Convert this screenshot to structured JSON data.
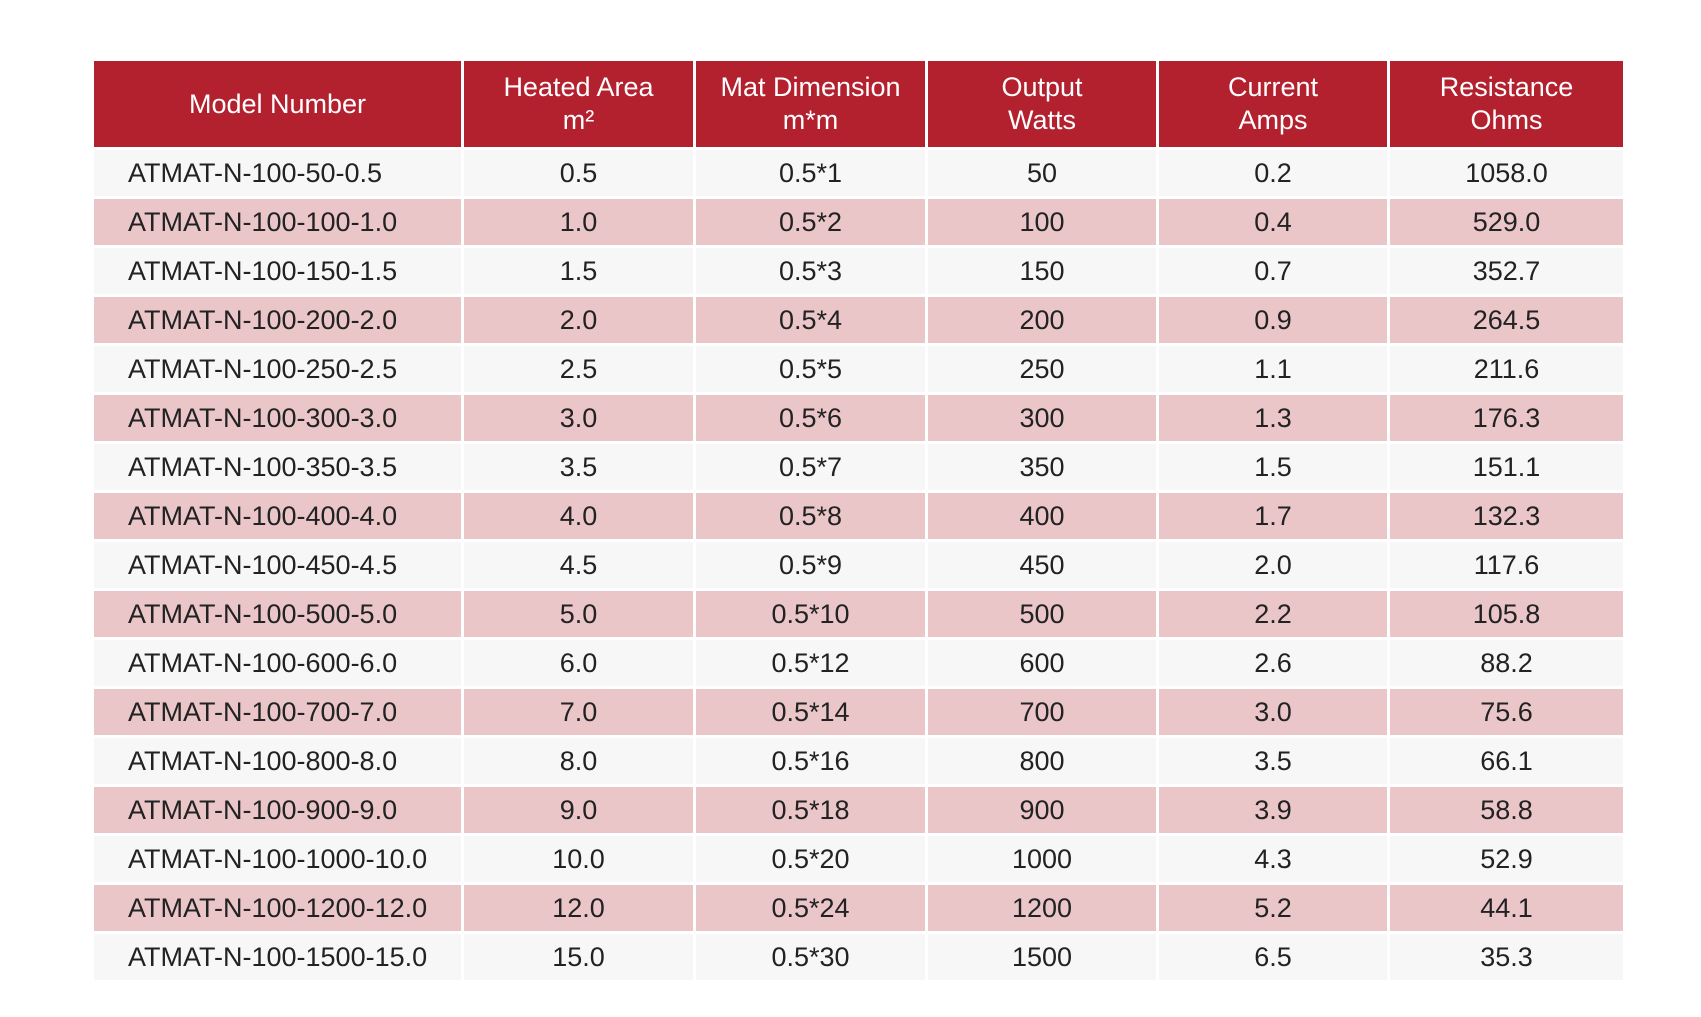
{
  "table": {
    "headers": [
      {
        "line1": "Model Number",
        "line2": ""
      },
      {
        "line1": "Heated Area",
        "line2": "m²"
      },
      {
        "line1": "Mat Dimension",
        "line2": "m*m"
      },
      {
        "line1": "Output",
        "line2": "Watts"
      },
      {
        "line1": "Current",
        "line2": "Amps"
      },
      {
        "line1": "Resistance",
        "line2": "Ohms"
      }
    ],
    "rows": [
      [
        "ATMAT-N-100-50-0.5",
        "0.5",
        "0.5*1",
        "50",
        "0.2",
        "1058.0"
      ],
      [
        "ATMAT-N-100-100-1.0",
        "1.0",
        "0.5*2",
        "100",
        "0.4",
        "529.0"
      ],
      [
        "ATMAT-N-100-150-1.5",
        "1.5",
        "0.5*3",
        "150",
        "0.7",
        "352.7"
      ],
      [
        "ATMAT-N-100-200-2.0",
        "2.0",
        "0.5*4",
        "200",
        "0.9",
        "264.5"
      ],
      [
        "ATMAT-N-100-250-2.5",
        "2.5",
        "0.5*5",
        "250",
        "1.1",
        "211.6"
      ],
      [
        "ATMAT-N-100-300-3.0",
        "3.0",
        "0.5*6",
        "300",
        "1.3",
        "176.3"
      ],
      [
        "ATMAT-N-100-350-3.5",
        "3.5",
        "0.5*7",
        "350",
        "1.5",
        "151.1"
      ],
      [
        "ATMAT-N-100-400-4.0",
        "4.0",
        "0.5*8",
        "400",
        "1.7",
        "132.3"
      ],
      [
        "ATMAT-N-100-450-4.5",
        "4.5",
        "0.5*9",
        "450",
        "2.0",
        "117.6"
      ],
      [
        "ATMAT-N-100-500-5.0",
        "5.0",
        "0.5*10",
        "500",
        "2.2",
        "105.8"
      ],
      [
        "ATMAT-N-100-600-6.0",
        "6.0",
        "0.5*12",
        "600",
        "2.6",
        "88.2"
      ],
      [
        "ATMAT-N-100-700-7.0",
        "7.0",
        "0.5*14",
        "700",
        "3.0",
        "75.6"
      ],
      [
        "ATMAT-N-100-800-8.0",
        "8.0",
        "0.5*16",
        "800",
        "3.5",
        "66.1"
      ],
      [
        "ATMAT-N-100-900-9.0",
        "9.0",
        "0.5*18",
        "900",
        "3.9",
        "58.8"
      ],
      [
        "ATMAT-N-100-1000-10.0",
        "10.0",
        "0.5*20",
        "1000",
        "4.3",
        "52.9"
      ],
      [
        "ATMAT-N-100-1200-12.0",
        "12.0",
        "0.5*24",
        "1200",
        "5.2",
        "44.1"
      ],
      [
        "ATMAT-N-100-1500-15.0",
        "15.0",
        "0.5*30",
        "1500",
        "6.5",
        "35.3"
      ]
    ]
  },
  "colors": {
    "header_bg": "#b3202e",
    "header_text": "#ffffff",
    "row_odd_bg": "#f7f7f7",
    "row_even_bg": "#eac6c9",
    "cell_text": "#222222"
  }
}
